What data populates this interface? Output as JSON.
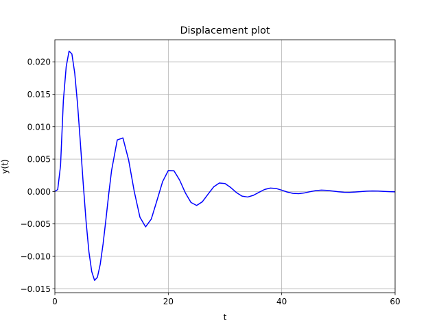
{
  "chart_data": {
    "type": "line",
    "title": "Displacement plot",
    "xlabel": "t",
    "ylabel": "y(t)",
    "x": [
      0,
      0.5,
      1,
      1.5,
      2,
      2.5,
      3,
      3.5,
      4,
      4.5,
      5,
      5.5,
      6,
      6.5,
      7,
      7.5,
      8,
      8.5,
      9,
      9.5,
      10,
      11,
      12,
      13,
      14,
      15,
      16,
      17,
      18,
      19,
      20,
      21,
      22,
      23,
      24,
      25,
      26,
      27,
      28,
      29,
      30,
      31,
      32,
      33,
      34,
      35,
      36,
      37,
      38,
      39,
      40,
      41,
      42,
      43,
      44,
      45,
      46,
      47,
      48,
      49,
      50,
      51,
      52,
      53,
      54,
      55,
      56,
      57,
      58,
      59,
      60
    ],
    "series": [
      {
        "color": "#0000ff",
        "values": [
          0,
          0.0003,
          0.004,
          0.01407,
          0.01927,
          0.02165,
          0.02122,
          0.01828,
          0.01346,
          0.00749,
          0.00121,
          -0.00459,
          -0.00927,
          -0.01235,
          -0.01371,
          -0.01322,
          -0.01123,
          -0.00809,
          -0.00433,
          -0.00038,
          0.00324,
          0.00795,
          0.00826,
          0.00489,
          0,
          -0.00396,
          -0.00545,
          -0.00426,
          -0.0014,
          0.00153,
          0.00323,
          0.0032,
          0.00176,
          -0.00019,
          -0.00169,
          -0.00215,
          -0.00159,
          -0.00043,
          0.00071,
          0.00131,
          0.00123,
          0.00062,
          -0.00015,
          -0.00071,
          -0.00085,
          -0.00059,
          -0.00012,
          0.00032,
          0.00053,
          0.00047,
          0.00021,
          -9e-05,
          -0.00029,
          -0.00033,
          -0.00022,
          -3e-05,
          0.00014,
          0.00021,
          0.00018,
          7e-05,
          -4e-05,
          -0.00012,
          -0.00013,
          -8e-05,
          -1e-05,
          6e-05,
          8e-05,
          7e-05,
          2e-05,
          -2e-05,
          -5e-05
        ]
      }
    ],
    "xlim": [
      0,
      60
    ],
    "xticks": [
      0,
      20,
      40,
      60
    ],
    "ylim": [
      -0.0156,
      0.0234
    ],
    "yticks": [
      {
        "value": -0.015,
        "label": "−0.015"
      },
      {
        "value": -0.01,
        "label": "−0.010"
      },
      {
        "value": -0.005,
        "label": "−0.005"
      },
      {
        "value": 0,
        "label": "0.000"
      },
      {
        "value": 0.005,
        "label": "0.005"
      },
      {
        "value": 0.01,
        "label": "0.010"
      },
      {
        "value": 0.015,
        "label": "0.015"
      },
      {
        "value": 0.02,
        "label": "0.020"
      }
    ],
    "grid": true
  }
}
